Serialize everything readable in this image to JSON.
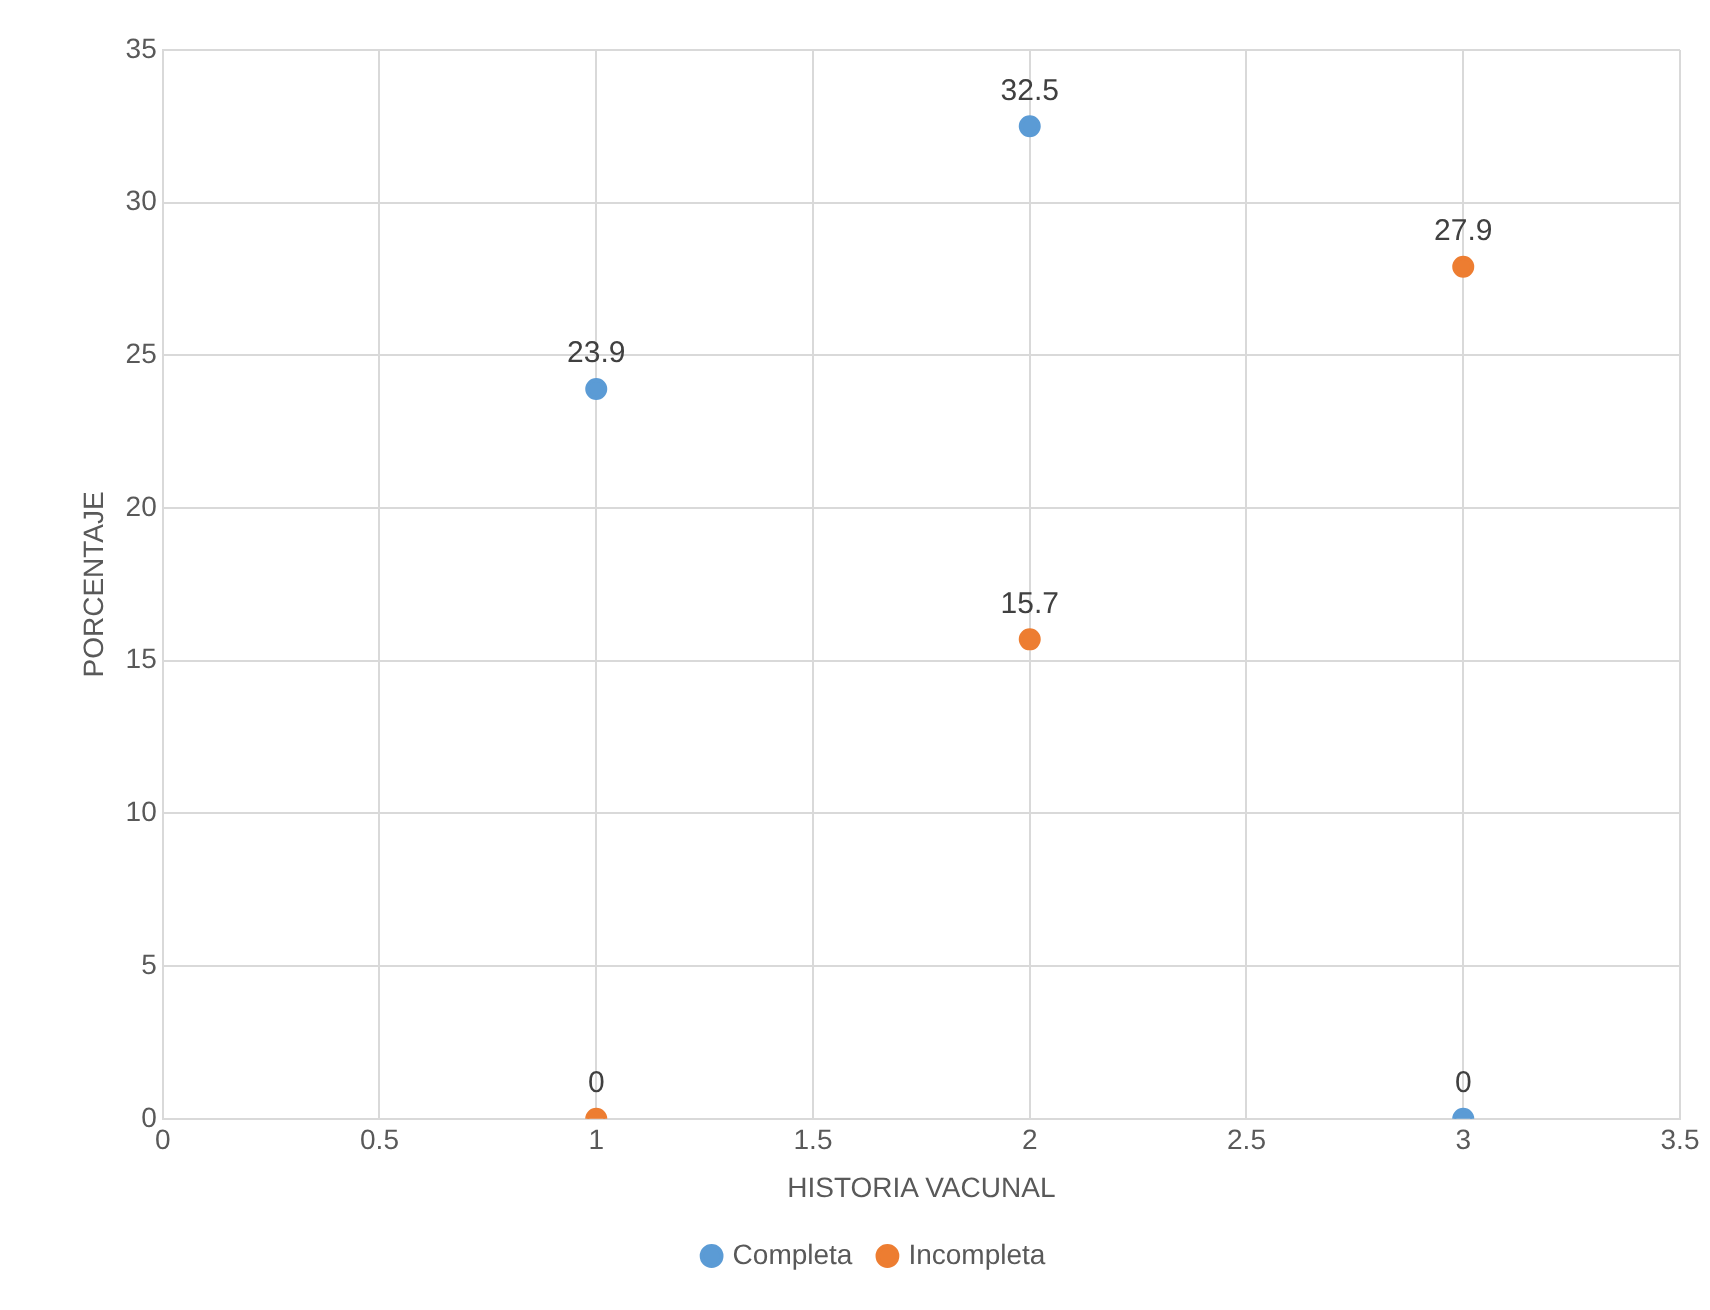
{
  "chart_data": {
    "type": "scatter",
    "xlabel": "HISTORIA VACUNAL",
    "ylabel": "PORCENTAJE",
    "series": [
      {
        "name": "Completa",
        "color": "#5b9bd5",
        "x": [
          1,
          2,
          3
        ],
        "values": [
          23.9,
          32.5,
          0
        ]
      },
      {
        "name": "Incompleta",
        "color": "#ed7d31",
        "x": [
          1,
          2,
          3
        ],
        "values": [
          0,
          15.7,
          27.9
        ]
      }
    ],
    "xlim": [
      0,
      3.5
    ],
    "xticks": [
      0,
      0.5,
      1,
      1.5,
      2,
      2.5,
      3,
      3.5
    ],
    "ylim": [
      0,
      35
    ],
    "yticks": [
      0,
      5,
      10,
      15,
      20,
      25,
      30,
      35
    ],
    "grid": true,
    "legend": "bottom",
    "marker": "circle",
    "data_labels": true
  }
}
